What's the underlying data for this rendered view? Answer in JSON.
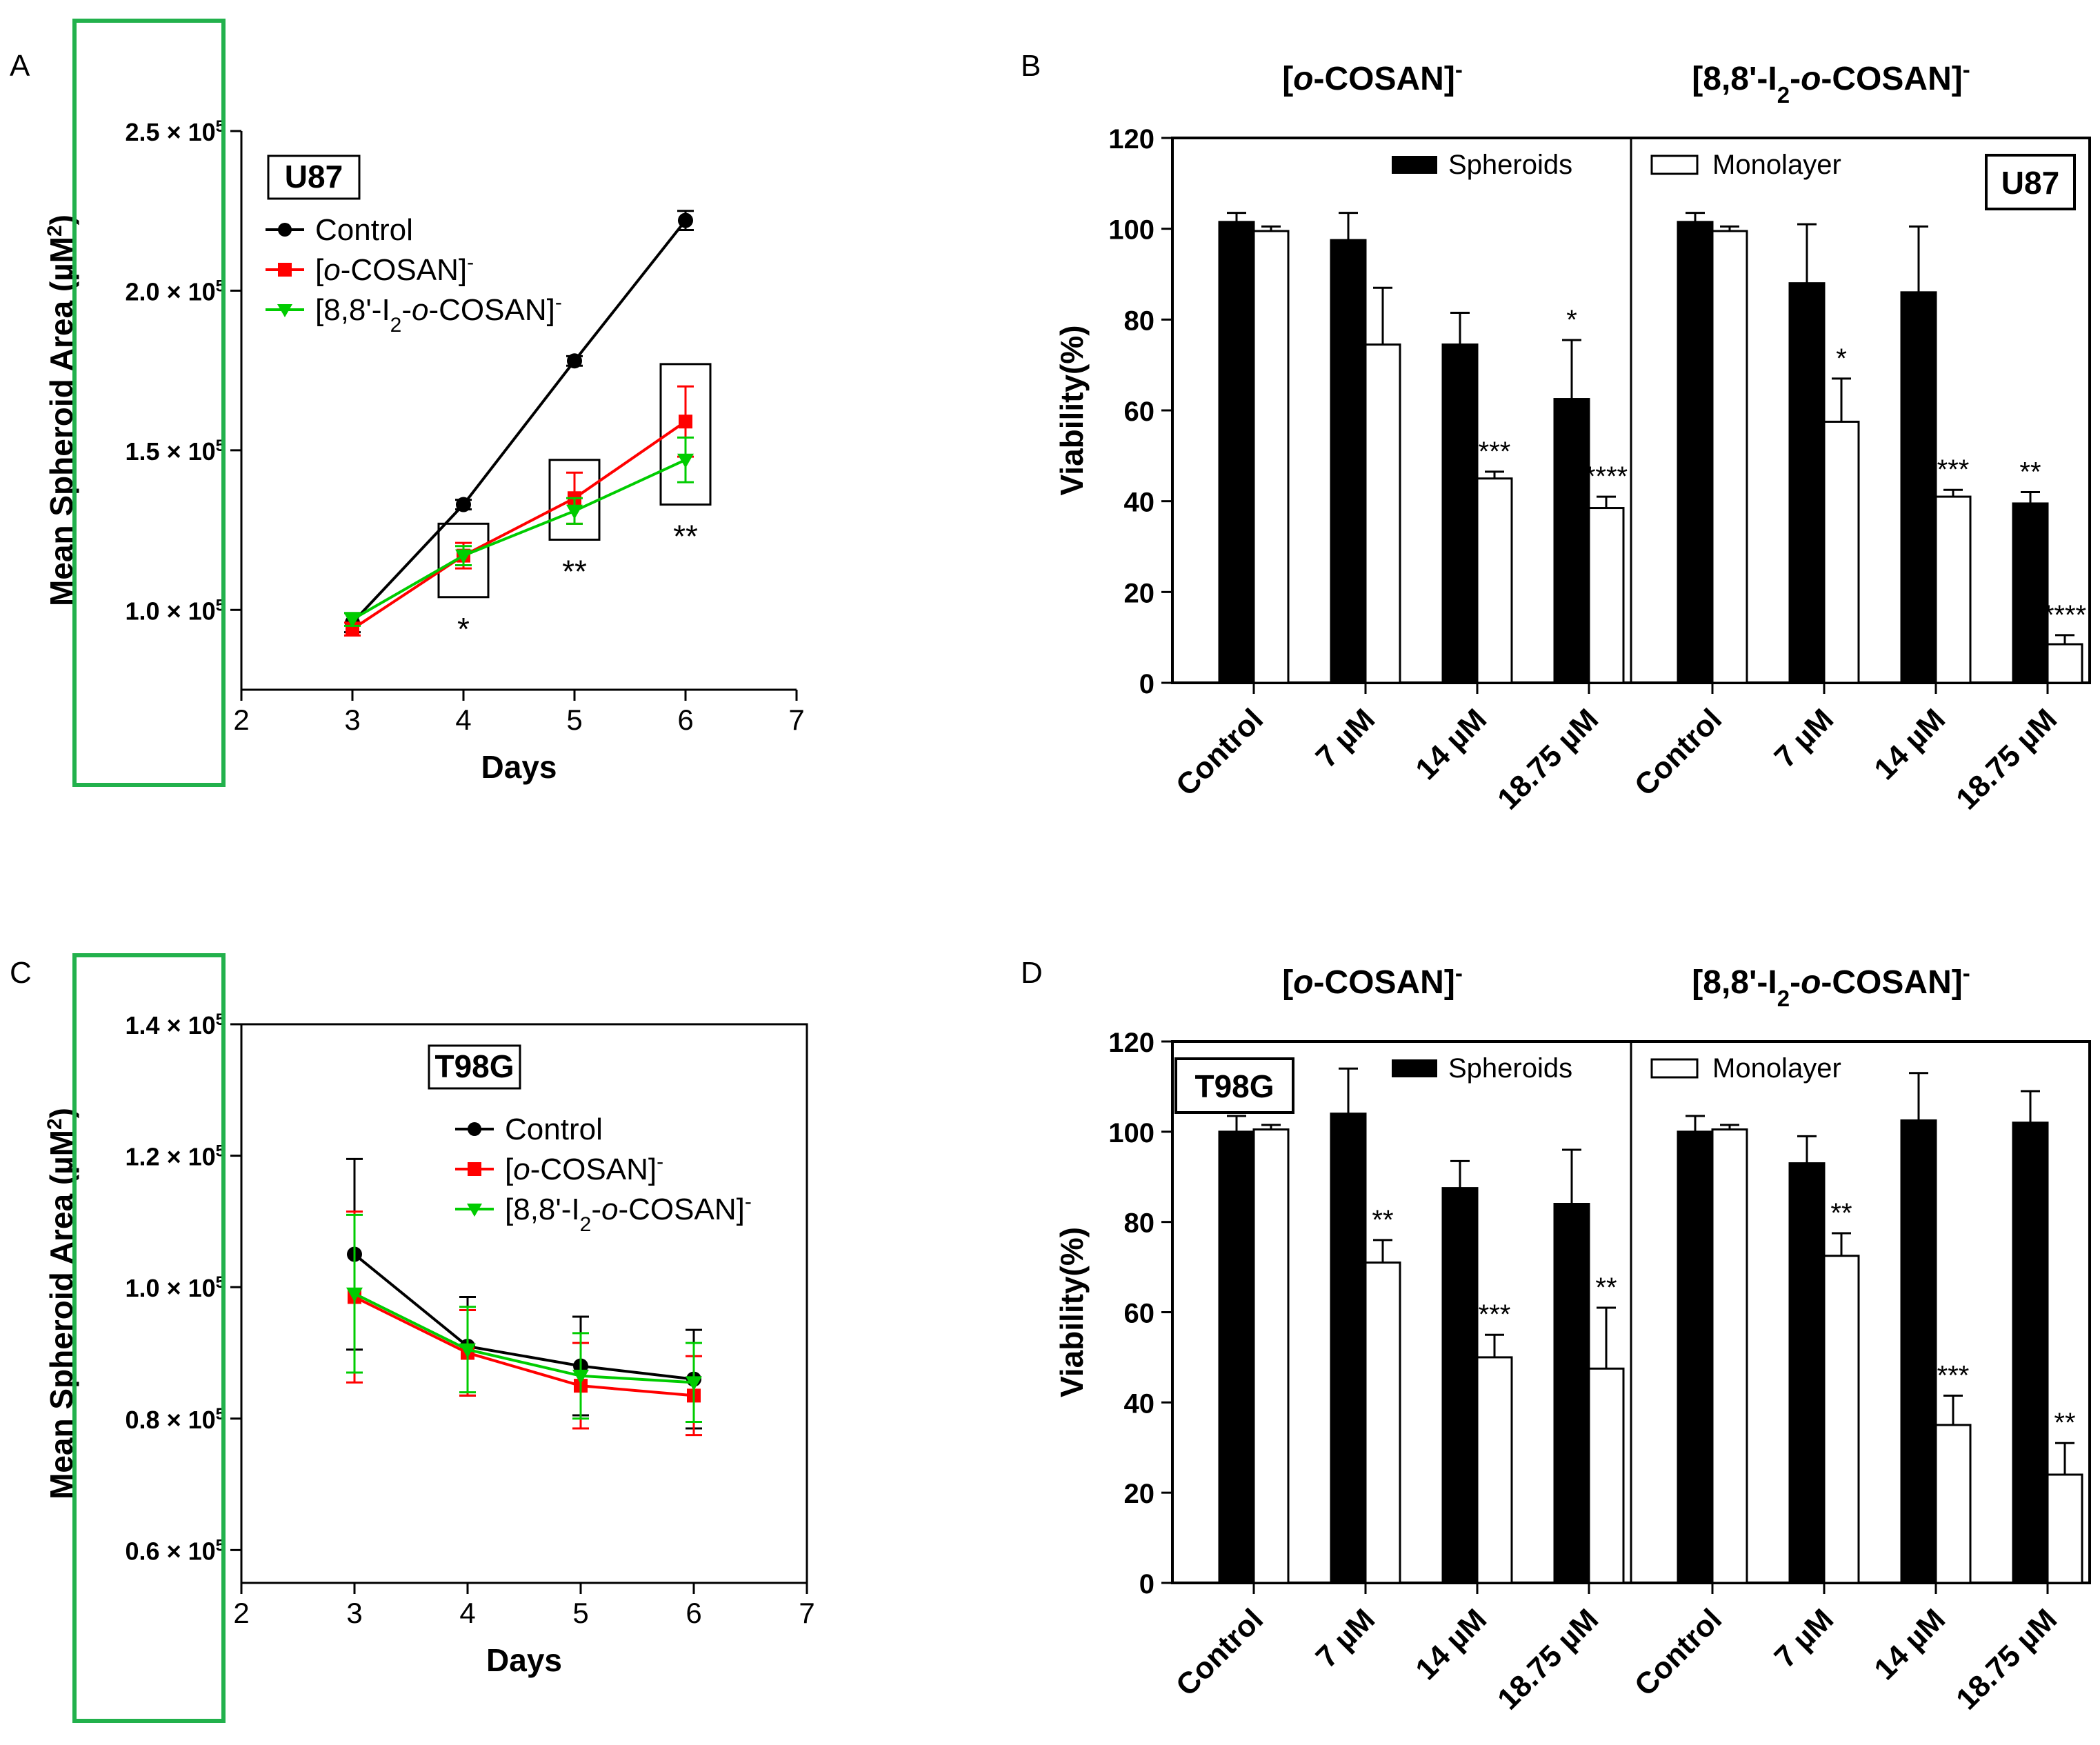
{
  "colors": {
    "control": "#000000",
    "ocosan": "#ff0000",
    "i2cosan": "#00cc00",
    "highlight": "#22b14c"
  },
  "chart_data": [
    {
      "panel": "A",
      "type": "line",
      "cell_line": "U87",
      "xlabel": "Days",
      "ylabel": "Mean Spheroid Area (µM²)",
      "ylabel_parts": {
        "base": "Mean Spheroid Area (µM",
        "sup": "2",
        "close": ")"
      },
      "xlim": [
        2,
        7
      ],
      "ylim": [
        75000,
        250000
      ],
      "xticks": [
        2,
        3,
        4,
        5,
        6,
        7
      ],
      "yticks": [
        {
          "value": 100000,
          "mant": "1.0 × 10",
          "exp": "5"
        },
        {
          "value": 150000,
          "mant": "1.5 × 10",
          "exp": "5"
        },
        {
          "value": 200000,
          "mant": "2.0 × 10",
          "exp": "5"
        },
        {
          "value": 250000,
          "mant": "2.5 × 10",
          "exp": "5"
        }
      ],
      "series": [
        {
          "key": "control",
          "name": "Control",
          "marker": "circle",
          "x": [
            3,
            4,
            5,
            6
          ],
          "y": [
            96000,
            133000,
            178000,
            222000
          ],
          "err": [
            3000,
            1500,
            1500,
            3000
          ]
        },
        {
          "key": "ocosan",
          "name": "[o-COSAN]⁻",
          "marker": "square",
          "x": [
            3,
            4,
            5,
            6
          ],
          "y": [
            94000,
            117000,
            135000,
            159000
          ],
          "err": [
            2000,
            4000,
            8000,
            11000
          ]
        },
        {
          "key": "i2cosan",
          "name": "[8,8'-I₂-o-COSAN]⁻",
          "marker": "triangle",
          "x": [
            3,
            4,
            5,
            6
          ],
          "y": [
            97000,
            117000,
            131000,
            147000
          ],
          "err": [
            2000,
            3000,
            4000,
            7000
          ]
        }
      ],
      "legend_names": [
        [
          "Control"
        ],
        [
          "[",
          "o",
          "-COSAN]",
          "-"
        ],
        [
          "[8,8'-I",
          "2",
          "-",
          "o",
          "-COSAN]",
          "-"
        ]
      ],
      "annotations": [
        {
          "x": 4,
          "text": "*"
        },
        {
          "x": 5,
          "text": "**"
        },
        {
          "x": 6,
          "text": "**"
        }
      ],
      "box_ranges": [
        {
          "x": 4,
          "y0": 104000,
          "y1": 127000
        },
        {
          "x": 5,
          "y0": 122000,
          "y1": 147000
        },
        {
          "x": 6,
          "y0": 133000,
          "y1": 177000
        }
      ]
    },
    {
      "panel": "B",
      "type": "bar",
      "cell_line": "U87",
      "ylabel": "Viability(%)",
      "ylim": [
        0,
        120
      ],
      "yticks": [
        0,
        20,
        40,
        60,
        80,
        100,
        120
      ],
      "legend": [
        "Spheroids",
        "Monolayer"
      ],
      "groups": [
        {
          "title": [
            "[",
            "o",
            "-COSAN]",
            "-"
          ],
          "categories": [
            "Control",
            "7 µM",
            "14 µM",
            "18.75 µM"
          ],
          "spheroids": [
            101.5,
            97.5,
            74.5,
            62.5
          ],
          "spheroids_err": [
            2,
            6,
            7,
            13
          ],
          "monolayer": [
            99.5,
            74.5,
            45,
            38.5
          ],
          "monolayer_err": [
            1,
            12.5,
            1.5,
            2.5
          ],
          "sig_spheroids": [
            "",
            "",
            "",
            "*"
          ],
          "sig_monolayer": [
            "",
            "",
            "***",
            "****"
          ]
        },
        {
          "title": [
            "[8,8'-I",
            "2",
            "-",
            "o",
            "-COSAN]",
            "-"
          ],
          "categories": [
            "Control",
            "7 µM",
            "14 µM",
            "18.75 µM"
          ],
          "spheroids": [
            101.5,
            88,
            86,
            39.5
          ],
          "spheroids_err": [
            2,
            13,
            14.5,
            2.5
          ],
          "monolayer": [
            99.5,
            57.5,
            41,
            8.5
          ],
          "monolayer_err": [
            1,
            9.5,
            1.5,
            2
          ],
          "sig_spheroids": [
            "",
            "",
            "",
            "**"
          ],
          "sig_monolayer": [
            "",
            "*",
            "***",
            "****"
          ]
        }
      ]
    },
    {
      "panel": "C",
      "type": "line",
      "cell_line": "T98G",
      "xlabel": "Days",
      "ylabel": "Mean Spheroid Area (µM²)",
      "ylabel_parts": {
        "base": "Mean Spheroid Area (µM",
        "sup": "2",
        "close": ")"
      },
      "xlim": [
        2,
        7
      ],
      "ylim": [
        55000,
        140000
      ],
      "xticks": [
        2,
        3,
        4,
        5,
        6,
        7
      ],
      "yticks": [
        {
          "value": 60000,
          "mant": "0.6 × 10",
          "exp": "5"
        },
        {
          "value": 80000,
          "mant": "0.8 × 10",
          "exp": "5"
        },
        {
          "value": 100000,
          "mant": "1.0 × 10",
          "exp": "5"
        },
        {
          "value": 120000,
          "mant": "1.2 × 10",
          "exp": "5"
        },
        {
          "value": 140000,
          "mant": "1.4 × 10",
          "exp": "5"
        }
      ],
      "series": [
        {
          "key": "control",
          "name": "Control",
          "marker": "circle",
          "x": [
            3,
            4,
            5,
            6
          ],
          "y": [
            105000,
            91000,
            88000,
            86000
          ],
          "err": [
            14500,
            7500,
            7500,
            7500
          ]
        },
        {
          "key": "ocosan",
          "name": "[o-COSAN]⁻",
          "marker": "square",
          "x": [
            3,
            4,
            5,
            6
          ],
          "y": [
            98500,
            90000,
            85000,
            83500
          ],
          "err": [
            13000,
            6500,
            6500,
            6000
          ]
        },
        {
          "key": "i2cosan",
          "name": "[8,8'-I₂-o-COSAN]⁻",
          "marker": "triangle",
          "x": [
            3,
            4,
            5,
            6
          ],
          "y": [
            99000,
            90500,
            86500,
            85500
          ],
          "err": [
            12000,
            6500,
            6500,
            6000
          ]
        }
      ],
      "legend_names": [
        [
          "Control"
        ],
        [
          "[",
          "o",
          "-COSAN]",
          "-"
        ],
        [
          "[8,8'-I",
          "2",
          "-",
          "o",
          "-COSAN]",
          "-"
        ]
      ],
      "annotations": [],
      "box_ranges": []
    },
    {
      "panel": "D",
      "type": "bar",
      "cell_line": "T98G",
      "ylabel": "Viability(%)",
      "ylim": [
        0,
        120
      ],
      "yticks": [
        0,
        20,
        40,
        60,
        80,
        100,
        120
      ],
      "legend": [
        "Spheroids",
        "Monolayer"
      ],
      "groups": [
        {
          "title": [
            "[",
            "o",
            "-COSAN]",
            "-"
          ],
          "categories": [
            "Control",
            "7 µM",
            "14 µM",
            "18.75 µM"
          ],
          "spheroids": [
            100,
            104,
            87.5,
            84
          ],
          "spheroids_err": [
            3.5,
            10,
            6,
            12
          ],
          "monolayer": [
            100.5,
            71,
            50,
            47.5
          ],
          "monolayer_err": [
            1,
            5,
            5,
            13.5
          ],
          "sig_spheroids": [
            "",
            "",
            "",
            ""
          ],
          "sig_monolayer": [
            "",
            "**",
            "***",
            "**"
          ]
        },
        {
          "title": [
            "[8,8'-I",
            "2",
            "-",
            "o",
            "-COSAN]",
            "-"
          ],
          "categories": [
            "Control",
            "7 µM",
            "14 µM",
            "18.75 µM"
          ],
          "spheroids": [
            100,
            93,
            102.5,
            102
          ],
          "spheroids_err": [
            3.5,
            6,
            10.5,
            7
          ],
          "monolayer": [
            100.5,
            72.5,
            35,
            24
          ],
          "monolayer_err": [
            1,
            5,
            6.5,
            7
          ],
          "sig_spheroids": [
            "",
            "",
            "",
            ""
          ],
          "sig_monolayer": [
            "",
            "**",
            "***",
            "**"
          ]
        }
      ]
    }
  ]
}
